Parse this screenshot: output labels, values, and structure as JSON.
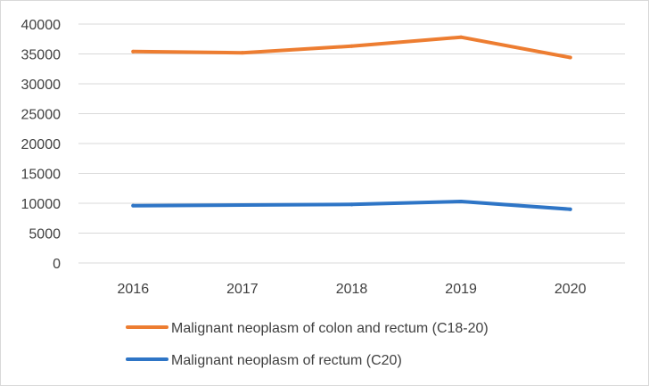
{
  "chart_data": {
    "type": "line",
    "title": "",
    "xlabel": "",
    "ylabel": "",
    "categories": [
      "2016",
      "2017",
      "2018",
      "2019",
      "2020"
    ],
    "ylim": [
      0,
      40000
    ],
    "y_ticks": [
      "0",
      "5000",
      "10000",
      "15000",
      "20000",
      "25000",
      "30000",
      "35000",
      "40000"
    ],
    "grid": true,
    "legend_position": "bottom",
    "series": [
      {
        "name": "Malignant neoplasm of colon and rectum (C18-20)",
        "color": "#ed7d31",
        "values": [
          35400,
          35200,
          36300,
          37800,
          34400
        ]
      },
      {
        "name": "Malignant neoplasm of rectum (C20)",
        "color": "#2e75c6",
        "values": [
          9600,
          9700,
          9800,
          10300,
          9000
        ]
      }
    ]
  }
}
